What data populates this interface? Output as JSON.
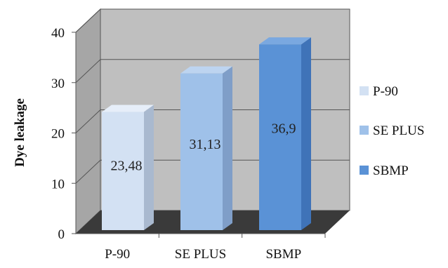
{
  "chart_data": {
    "type": "bar",
    "categories": [
      "P-90",
      "SE PLUS",
      "SBMP"
    ],
    "values": [
      23.48,
      31.13,
      36.9
    ],
    "data_labels": [
      "23,48",
      "31,13",
      "36,9"
    ],
    "ylabel": "Dye leakage",
    "ylim": [
      0,
      40
    ],
    "yticks": [
      "0",
      "10",
      "20",
      "30",
      "40"
    ],
    "grid": true,
    "legend": {
      "placement": "right",
      "entries": [
        "P-90",
        "SE PLUS",
        "SBMP"
      ]
    },
    "colors": {
      "bars": [
        "#d3e1f3",
        "#9fc1e9",
        "#5a92d6"
      ],
      "bar_sides": [
        "#a9b9cf",
        "#7f9ec8",
        "#3f73b8"
      ],
      "bar_tops": [
        "#e6eef9",
        "#bdd4f0",
        "#7aa8e0"
      ],
      "wall": "#bfbfbf",
      "side_wall": "#a6a6a6",
      "floor": "#3a3a3a"
    }
  }
}
